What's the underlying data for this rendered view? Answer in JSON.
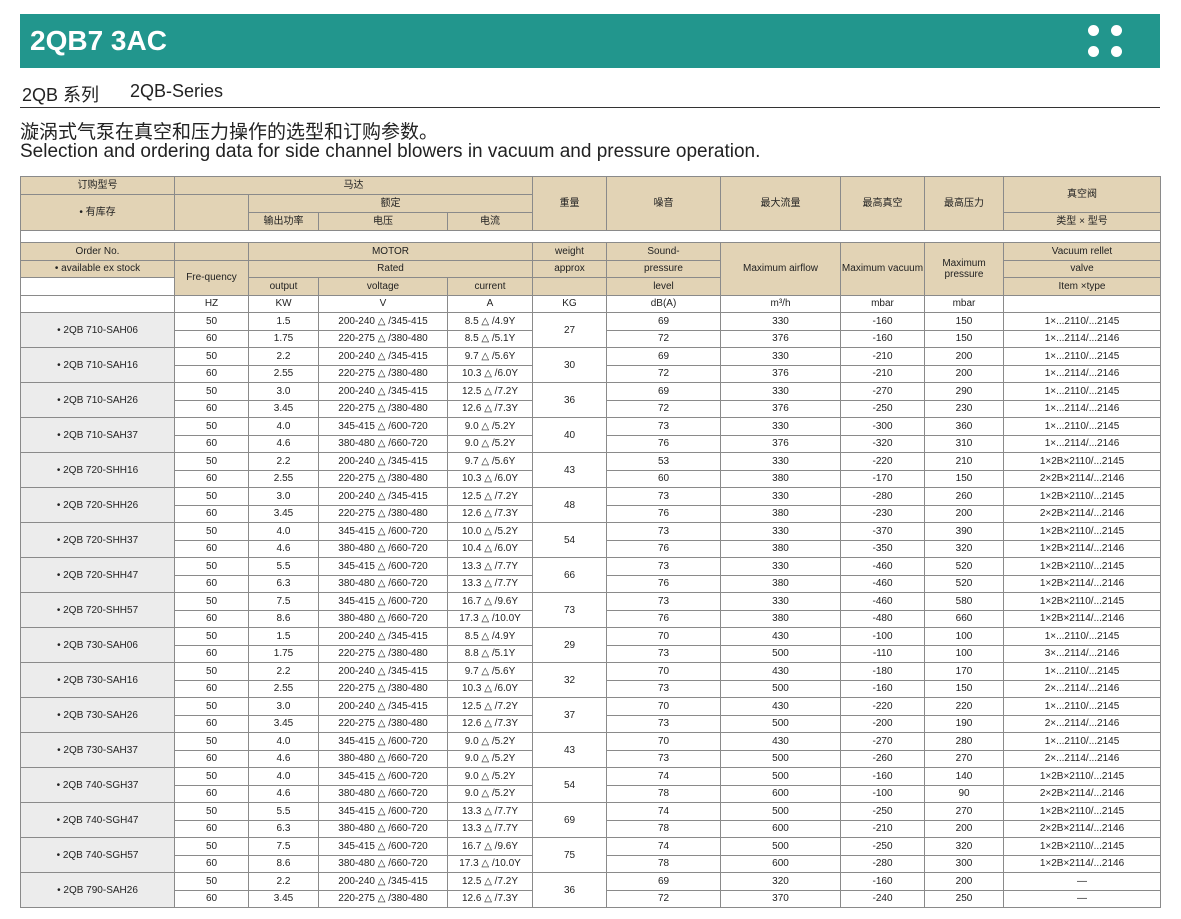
{
  "header": {
    "title": "2QB7 3AC",
    "series_cn": "2QB 系列",
    "series_en": "2QB-Series",
    "desc_cn": "漩涡式气泵在真空和压力操作的选型和订购参数。",
    "desc_en": "Selection and ordering data for side channel blowers in vacuum and pressure operation."
  },
  "table": {
    "cn_header": {
      "order_no": "订购型号",
      "motor": "马达",
      "weight": "重量",
      "noise": "噪音",
      "max_flow": "最大流量",
      "max_vacuum": "最高真空",
      "max_pressure": "最高压力",
      "valve": "真空阀",
      "in_stock": "• 有库存",
      "rated": "额定",
      "output": "输出功率",
      "voltage": "电压",
      "current": "电流",
      "valve_type": "类型 × 型号"
    },
    "en_header": {
      "order_no": "Order No.",
      "motor": "MOTOR",
      "weight": "weight",
      "sound1": "Sound-",
      "max_flow": "Maximum airflow",
      "max_vacuum": "Maximum vacuum",
      "max_pressure": "Maximum pressure",
      "valve1": "Vacuum rellet",
      "in_stock": "• available ex stock",
      "frequency": "Fre-quency",
      "rated": "Rated",
      "approx": "approx",
      "sound2": "pressure",
      "valve2": "valve",
      "output": "output",
      "voltage": "voltage",
      "current": "current",
      "sound3": "level",
      "valve3": "Item ×type"
    },
    "units": [
      "HZ",
      "KW",
      "V",
      "A",
      "KG",
      "dB(A)",
      "m³/h",
      "mbar",
      "mbar"
    ],
    "models": [
      {
        "name": "• 2QB 710-SAH06",
        "weight": "27",
        "rows": [
          [
            "50",
            "1.5",
            "200-240 △ /345-415",
            "8.5 △ /4.9Y",
            "69",
            "330",
            "-160",
            "150",
            "1×...2110/...2145"
          ],
          [
            "60",
            "1.75",
            "220-275 △ /380-480",
            "8.5 △ /5.1Y",
            "72",
            "376",
            "-160",
            "150",
            "1×...2114/...2146"
          ]
        ]
      },
      {
        "name": "• 2QB 710-SAH16",
        "weight": "30",
        "rows": [
          [
            "50",
            "2.2",
            "200-240 △ /345-415",
            "9.7 △ /5.6Y",
            "69",
            "330",
            "-210",
            "200",
            "1×...2110/...2145"
          ],
          [
            "60",
            "2.55",
            "220-275 △ /380-480",
            "10.3 △ /6.0Y",
            "72",
            "376",
            "-210",
            "200",
            "1×...2114/...2146"
          ]
        ]
      },
      {
        "name": "• 2QB 710-SAH26",
        "weight": "36",
        "rows": [
          [
            "50",
            "3.0",
            "200-240 △ /345-415",
            "12.5 △ /7.2Y",
            "69",
            "330",
            "-270",
            "290",
            "1×...2110/...2145"
          ],
          [
            "60",
            "3.45",
            "220-275 △ /380-480",
            "12.6 △ /7.3Y",
            "72",
            "376",
            "-250",
            "230",
            "1×...2114/...2146"
          ]
        ]
      },
      {
        "name": "• 2QB 710-SAH37",
        "weight": "40",
        "rows": [
          [
            "50",
            "4.0",
            "345-415 △ /600-720",
            "9.0 △ /5.2Y",
            "73",
            "330",
            "-300",
            "360",
            "1×...2110/...2145"
          ],
          [
            "60",
            "4.6",
            "380-480 △ /660-720",
            "9.0 △ /5.2Y",
            "76",
            "376",
            "-320",
            "310",
            "1×...2114/...2146"
          ]
        ]
      },
      {
        "name": "• 2QB 720-SHH16",
        "weight": "43",
        "rows": [
          [
            "50",
            "2.2",
            "200-240 △ /345-415",
            "9.7 △ /5.6Y",
            "53",
            "330",
            "-220",
            "210",
            "1×2B×2110/...2145"
          ],
          [
            "60",
            "2.55",
            "220-275 △ /380-480",
            "10.3 △ /6.0Y",
            "60",
            "380",
            "-170",
            "150",
            "2×2B×2114/...2146"
          ]
        ]
      },
      {
        "name": "• 2QB 720-SHH26",
        "weight": "48",
        "rows": [
          [
            "50",
            "3.0",
            "200-240 △ /345-415",
            "12.5 △ /7.2Y",
            "73",
            "330",
            "-280",
            "260",
            "1×2B×2110/...2145"
          ],
          [
            "60",
            "3.45",
            "220-275 △ /380-480",
            "12.6 △ /7.3Y",
            "76",
            "380",
            "-230",
            "200",
            "2×2B×2114/...2146"
          ]
        ]
      },
      {
        "name": "• 2QB 720-SHH37",
        "weight": "54",
        "rows": [
          [
            "50",
            "4.0",
            "345-415 △ /600-720",
            "10.0 △ /5.2Y",
            "73",
            "330",
            "-370",
            "390",
            "1×2B×2110/...2145"
          ],
          [
            "60",
            "4.6",
            "380-480 △ /660-720",
            "10.4 △ /6.0Y",
            "76",
            "380",
            "-350",
            "320",
            "1×2B×2114/...2146"
          ]
        ]
      },
      {
        "name": "• 2QB 720-SHH47",
        "weight": "66",
        "rows": [
          [
            "50",
            "5.5",
            "345-415 △ /600-720",
            "13.3 △ /7.7Y",
            "73",
            "330",
            "-460",
            "520",
            "1×2B×2110/...2145"
          ],
          [
            "60",
            "6.3",
            "380-480 △ /660-720",
            "13.3 △ /7.7Y",
            "76",
            "380",
            "-460",
            "520",
            "1×2B×2114/...2146"
          ]
        ]
      },
      {
        "name": "• 2QB 720-SHH57",
        "weight": "73",
        "rows": [
          [
            "50",
            "7.5",
            "345-415 △ /600-720",
            "16.7 △ /9.6Y",
            "73",
            "330",
            "-460",
            "580",
            "1×2B×2110/...2145"
          ],
          [
            "60",
            "8.6",
            "380-480 △ /660-720",
            "17.3 △ /10.0Y",
            "76",
            "380",
            "-480",
            "660",
            "1×2B×2114/...2146"
          ]
        ]
      },
      {
        "name": "• 2QB 730-SAH06",
        "weight": "29",
        "rows": [
          [
            "50",
            "1.5",
            "200-240 △ /345-415",
            "8.5 △ /4.9Y",
            "70",
            "430",
            "-100",
            "100",
            "1×...2110/...2145"
          ],
          [
            "60",
            "1.75",
            "220-275 △ /380-480",
            "8.8 △ /5.1Y",
            "73",
            "500",
            "-110",
            "100",
            "3×...2114/...2146"
          ]
        ]
      },
      {
        "name": "• 2QB 730-SAH16",
        "weight": "32",
        "rows": [
          [
            "50",
            "2.2",
            "200-240 △ /345-415",
            "9.7 △ /5.6Y",
            "70",
            "430",
            "-180",
            "170",
            "1×...2110/...2145"
          ],
          [
            "60",
            "2.55",
            "220-275 △ /380-480",
            "10.3 △ /6.0Y",
            "73",
            "500",
            "-160",
            "150",
            "2×...2114/...2146"
          ]
        ]
      },
      {
        "name": "• 2QB 730-SAH26",
        "weight": "37",
        "rows": [
          [
            "50",
            "3.0",
            "200-240 △ /345-415",
            "12.5 △ /7.2Y",
            "70",
            "430",
            "-220",
            "220",
            "1×...2110/...2145"
          ],
          [
            "60",
            "3.45",
            "220-275 △ /380-480",
            "12.6 △ /7.3Y",
            "73",
            "500",
            "-200",
            "190",
            "2×...2114/...2146"
          ]
        ]
      },
      {
        "name": "• 2QB 730-SAH37",
        "weight": "43",
        "rows": [
          [
            "50",
            "4.0",
            "345-415 △ /600-720",
            "9.0 △ /5.2Y",
            "70",
            "430",
            "-270",
            "280",
            "1×...2110/...2145"
          ],
          [
            "60",
            "4.6",
            "380-480 △ /660-720",
            "9.0 △ /5.2Y",
            "73",
            "500",
            "-260",
            "270",
            "2×...2114/...2146"
          ]
        ]
      },
      {
        "name": "• 2QB 740-SGH37",
        "weight": "54",
        "rows": [
          [
            "50",
            "4.0",
            "345-415 △ /600-720",
            "9.0 △ /5.2Y",
            "74",
            "500",
            "-160",
            "140",
            "1×2B×2110/...2145"
          ],
          [
            "60",
            "4.6",
            "380-480 △ /660-720",
            "9.0 △ /5.2Y",
            "78",
            "600",
            "-100",
            "90",
            "2×2B×2114/...2146"
          ]
        ]
      },
      {
        "name": "• 2QB 740-SGH47",
        "weight": "69",
        "rows": [
          [
            "50",
            "5.5",
            "345-415 △ /600-720",
            "13.3 △ /7.7Y",
            "74",
            "500",
            "-250",
            "270",
            "1×2B×2110/...2145"
          ],
          [
            "60",
            "6.3",
            "380-480 △ /660-720",
            "13.3 △ /7.7Y",
            "78",
            "600",
            "-210",
            "200",
            "2×2B×2114/...2146"
          ]
        ]
      },
      {
        "name": "• 2QB 740-SGH57",
        "weight": "75",
        "rows": [
          [
            "50",
            "7.5",
            "345-415 △ /600-720",
            "16.7 △ /9.6Y",
            "74",
            "500",
            "-250",
            "320",
            "1×2B×2110/...2145"
          ],
          [
            "60",
            "8.6",
            "380-480 △ /660-720",
            "17.3 △ /10.0Y",
            "78",
            "600",
            "-280",
            "300",
            "1×2B×2114/...2146"
          ]
        ]
      },
      {
        "name": "• 2QB 790-SAH26",
        "weight": "36",
        "rows": [
          [
            "50",
            "2.2",
            "200-240 △ /345-415",
            "12.5 △ /7.2Y",
            "69",
            "320",
            "-160",
            "200",
            "—"
          ],
          [
            "60",
            "3.45",
            "220-275 △ /380-480",
            "12.6 △ /7.3Y",
            "72",
            "370",
            "-240",
            "250",
            "—"
          ]
        ]
      }
    ]
  }
}
